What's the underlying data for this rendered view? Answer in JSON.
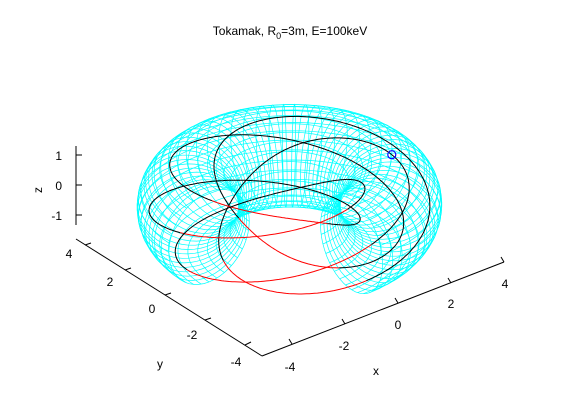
{
  "chart_data": {
    "type": "line",
    "projection": "3d",
    "title": {
      "prefix": "Tokamak, R",
      "subscript": "0",
      "suffix": "=3m, E=100keV"
    },
    "xlabel": "x",
    "ylabel": "y",
    "zlabel": "z",
    "xlim": [
      -4.5,
      4.5
    ],
    "ylim": [
      -4.5,
      4.5
    ],
    "zlim": [
      -1.5,
      1.5
    ],
    "x_ticks": [
      "-4",
      "-2",
      "0",
      "2",
      "4"
    ],
    "y_ticks": [
      "-4",
      "-2",
      "0",
      "2",
      "4"
    ],
    "z_ticks": [
      "-1",
      "0",
      "1"
    ],
    "grid": false,
    "surface": {
      "kind": "torus wireframe",
      "major_radius": 3,
      "minor_radius": 1.5,
      "phi_range_deg": [
        -90,
        180
      ],
      "color": "#00ffff"
    },
    "series": [
      {
        "kind": "helical trajectory",
        "color": "#ff0000",
        "turns": 5,
        "start_marker": "o",
        "marker_color": "#0000ff"
      }
    ],
    "colors": {
      "surface": "#00ffff",
      "trajectory": "#ff0000",
      "trajectory_hidden": "#000000",
      "start_marker": "#0000ff"
    }
  }
}
